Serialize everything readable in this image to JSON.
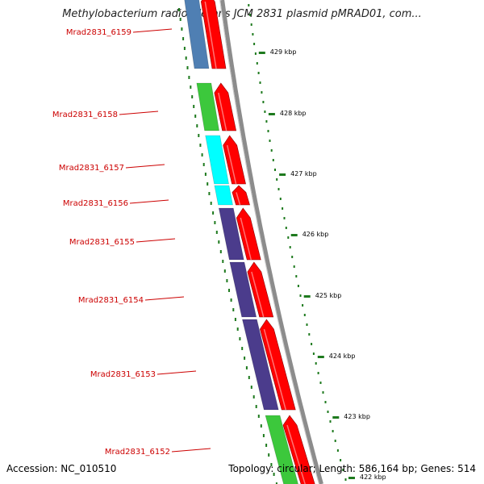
{
  "title": "Methylobacterium radiotolerans JCM 2831 plasmid pMRAD01, com...",
  "footer": {
    "accession": "Accession: NC_010510",
    "summary": "Topology: circular; Length: 586,164 bp; Genes: 514"
  },
  "colors": {
    "forward_cds": "#ff0000",
    "backbone": "#8c8c8c",
    "tick": "#1e7a1e",
    "label": "#cc0000",
    "steelblue": "#4f7fb3",
    "green": "#3cc83c",
    "cyan": "#00ffff",
    "purple": "#4b3c8c"
  },
  "ticks": [
    "429 kbp",
    "428 kbp",
    "427 kbp",
    "426 kbp",
    "425 kbp",
    "424 kbp",
    "423 kbp",
    "422 kbp"
  ],
  "genes": [
    {
      "label": "Mrad2831_6159",
      "category_color": "steelblue"
    },
    {
      "label": "Mrad2831_6158",
      "category_color": "green"
    },
    {
      "label": "Mrad2831_6157",
      "category_color": "cyan"
    },
    {
      "label": "Mrad2831_6156",
      "category_color": "cyan"
    },
    {
      "label": "Mrad2831_6155",
      "category_color": "purple"
    },
    {
      "label": "Mrad2831_6154",
      "category_color": "purple"
    },
    {
      "label": "Mrad2831_6153",
      "category_color": "purple"
    },
    {
      "label": "Mrad2831_6152",
      "category_color": "green"
    }
  ]
}
